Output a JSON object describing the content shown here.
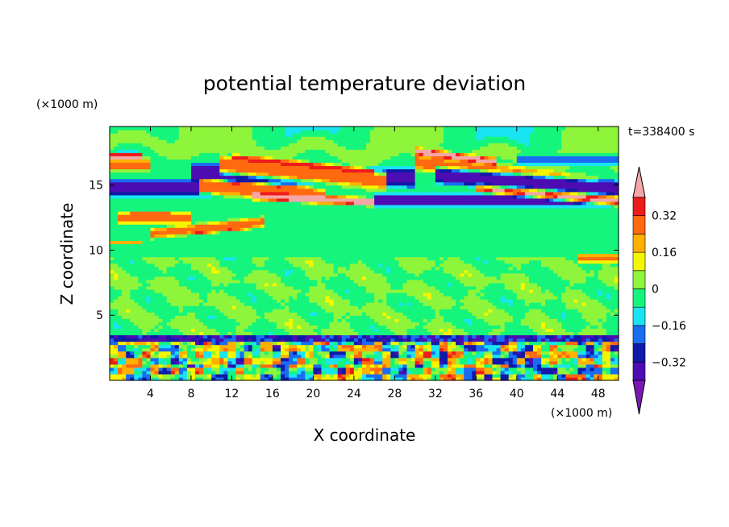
{
  "chart_data": {
    "type": "heatmap",
    "title": "potential temperature deviation",
    "xlabel": "X coordinate",
    "ylabel": "Z coordinate",
    "x_unit": "(×1000 m)",
    "y_unit": "(×1000 m)",
    "time_label": "t=338400 s",
    "xlim": [
      0,
      50
    ],
    "ylim": [
      0,
      19.5
    ],
    "x_ticks": [
      4,
      8,
      12,
      16,
      20,
      24,
      28,
      32,
      36,
      40,
      44,
      48
    ],
    "y_ticks": [
      5,
      10,
      15
    ],
    "colorbar": {
      "levels": [
        -0.4,
        -0.32,
        -0.24,
        -0.16,
        -0.08,
        0,
        0.08,
        0.16,
        0.24,
        0.32,
        0.4
      ],
      "colors": [
        "#7a17b3",
        "#4d0db3",
        "#0f1aa8",
        "#1a6cf2",
        "#19e4f2",
        "#15f57e",
        "#8ff53a",
        "#f5f500",
        "#ffb000",
        "#ff6a10",
        "#ee1b1b",
        "#f5a6a6"
      ],
      "tick_labels": [
        "0.32",
        "0.16",
        "0",
        "−0.16",
        "−0.32"
      ],
      "tick_values": [
        0.32,
        0.16,
        0,
        -0.16,
        -0.32
      ],
      "extend": "both"
    },
    "background_value": -0.04,
    "bands": [
      {
        "z": 18.3,
        "half_width": 1.2,
        "value": 0.01,
        "slope": -0.03,
        "wave_amp": 0.6,
        "wave_len": 9
      },
      {
        "z": 17.2,
        "half_width": 0.35,
        "value": 0.44,
        "slope": 0.0,
        "x_range": [
          0,
          3
        ]
      },
      {
        "z": 16.6,
        "half_width": 0.6,
        "value": 0.25,
        "slope": 0.0,
        "x_range": [
          0,
          4
        ]
      },
      {
        "z": 16.0,
        "half_width": 0.9,
        "value": -0.38,
        "slope": -0.02,
        "x_range": [
          8,
          30
        ]
      },
      {
        "z": 17.0,
        "half_width": 0.5,
        "value": 0.44,
        "slope": -0.08,
        "x_range": [
          12,
          26
        ]
      },
      {
        "z": 16.6,
        "half_width": 0.9,
        "value": 0.28,
        "slope": -0.08,
        "x_range": [
          11,
          27
        ]
      },
      {
        "z": 14.8,
        "half_width": 0.8,
        "value": -0.36,
        "slope": 0.0,
        "x_range": [
          0,
          10
        ]
      },
      {
        "z": 15.2,
        "half_width": 0.35,
        "value": 0.44,
        "slope": -0.06,
        "x_range": [
          9,
          20
        ]
      },
      {
        "z": 14.9,
        "half_width": 0.7,
        "value": 0.26,
        "slope": -0.06,
        "x_range": [
          9,
          21
        ]
      },
      {
        "z": 14.2,
        "half_width": 0.4,
        "value": 0.44,
        "slope": -0.04,
        "x_range": [
          14,
          26
        ]
      },
      {
        "z": 13.9,
        "half_width": 0.6,
        "value": -0.37,
        "slope": 0.0,
        "x_range": [
          26,
          50
        ]
      },
      {
        "z": 17.6,
        "half_width": 0.4,
        "value": 0.44,
        "slope": -0.1,
        "x_range": [
          30,
          38
        ]
      },
      {
        "z": 16.8,
        "half_width": 0.8,
        "value": 0.28,
        "slope": -0.1,
        "x_range": [
          30,
          48
        ]
      },
      {
        "z": 15.0,
        "half_width": 0.6,
        "value": 0.44,
        "slope": -0.08,
        "x_range": [
          36,
          50
        ]
      },
      {
        "z": 15.8,
        "half_width": 0.8,
        "value": -0.38,
        "slope": -0.06,
        "x_range": [
          32,
          50
        ]
      },
      {
        "z": 16.9,
        "half_width": 0.5,
        "value": -0.2,
        "slope": 0.0,
        "x_range": [
          40,
          50
        ]
      },
      {
        "z": 12.7,
        "half_width": 0.3,
        "value": 0.44,
        "slope": 0.0,
        "x_range": [
          2,
          6
        ]
      },
      {
        "z": 12.5,
        "half_width": 0.6,
        "value": 0.28,
        "slope": 0.0,
        "x_range": [
          1,
          8
        ]
      },
      {
        "z": 11.4,
        "half_width": 0.25,
        "value": 0.44,
        "slope": 0.08,
        "x_range": [
          8,
          14
        ]
      },
      {
        "z": 11.3,
        "half_width": 0.5,
        "value": 0.26,
        "slope": 0.08,
        "x_range": [
          4,
          15
        ]
      },
      {
        "z": 10.6,
        "half_width": 0.2,
        "value": 0.2,
        "slope": 0.0,
        "x_range": [
          0,
          3
        ]
      },
      {
        "z": 9.4,
        "half_width": 0.4,
        "value": 0.3,
        "slope": 0.0,
        "x_range": [
          46,
          50
        ]
      }
    ],
    "mid_layer": {
      "z_range": [
        3.5,
        9.5
      ],
      "value_range": [
        -0.08,
        0.08
      ]
    },
    "boundary_layer": {
      "z_range": [
        0,
        3.6
      ],
      "value_range": [
        -0.4,
        0.4
      ],
      "cells_x": 60,
      "cells_z": 8
    }
  }
}
